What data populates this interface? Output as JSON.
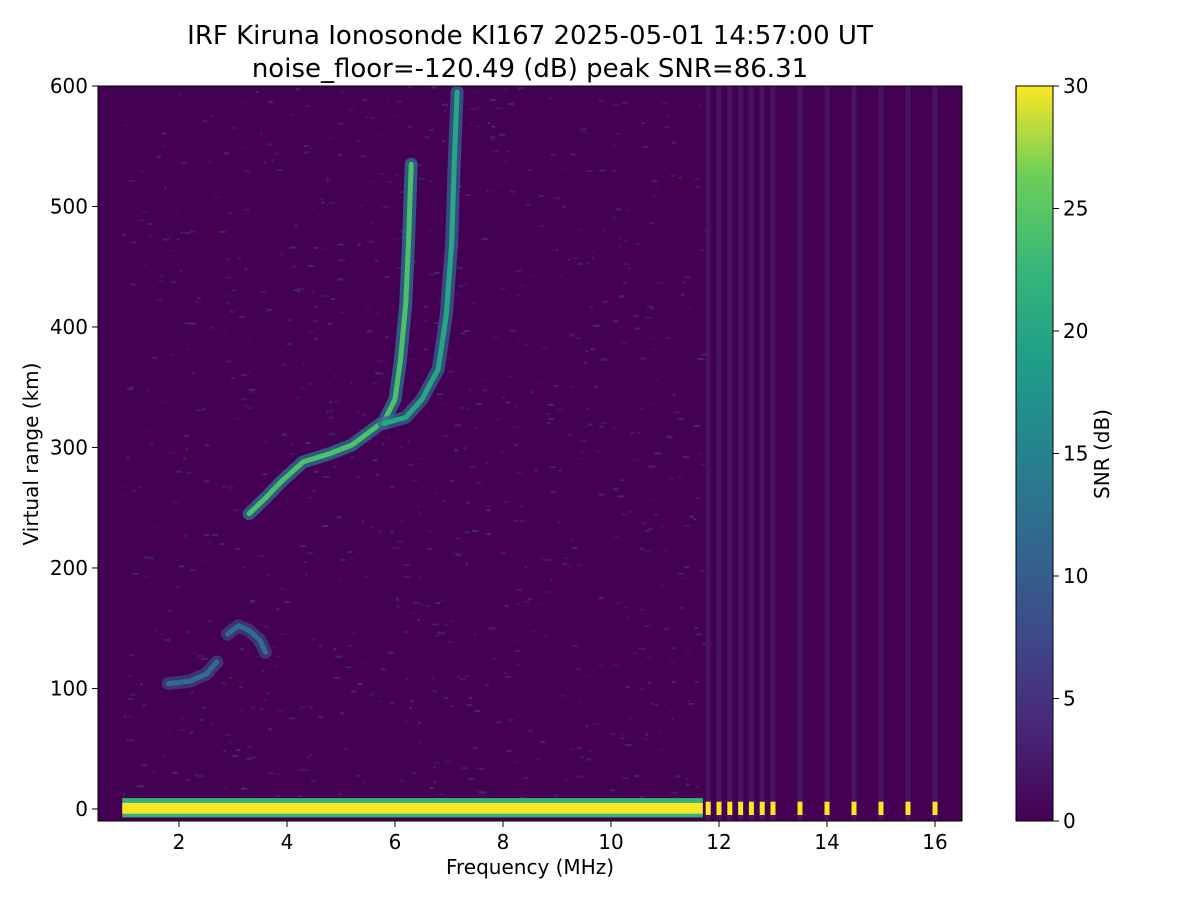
{
  "chart_data": {
    "type": "heatmap",
    "title": "IRF Kiruna Ionosonde KI167 2025-05-01 14:57:00  UT",
    "subtitle": "noise_floor=-120.49 (dB) peak SNR=86.31",
    "xlabel": "Frequency (MHz)",
    "ylabel": "Virtual range (km)",
    "xlim": [
      0.5,
      16.5
    ],
    "ylim": [
      -10,
      600
    ],
    "xticks": [
      2,
      4,
      6,
      8,
      10,
      12,
      14,
      16
    ],
    "yticks": [
      0,
      100,
      200,
      300,
      400,
      500,
      600
    ],
    "colorbar": {
      "label": "SNR (dB)",
      "range": [
        0,
        30
      ],
      "ticks": [
        0,
        5,
        10,
        15,
        20,
        25,
        30
      ],
      "colormap": "viridis"
    },
    "grid": false,
    "traces": [
      {
        "name": "E-layer trace",
        "points": [
          [
            1.8,
            104
          ],
          [
            2.2,
            106
          ],
          [
            2.5,
            112
          ],
          [
            2.7,
            122
          ]
        ],
        "snr": 12
      },
      {
        "name": "Es / E2 echoes",
        "points": [
          [
            2.9,
            145
          ],
          [
            3.1,
            152
          ],
          [
            3.3,
            148
          ],
          [
            3.5,
            140
          ],
          [
            3.6,
            130
          ]
        ],
        "snr": 12
      },
      {
        "name": "F-layer O-mode",
        "points": [
          [
            3.3,
            245
          ],
          [
            3.6,
            258
          ],
          [
            3.9,
            272
          ],
          [
            4.3,
            288
          ],
          [
            4.8,
            295
          ],
          [
            5.2,
            302
          ],
          [
            5.5,
            312
          ],
          [
            5.8,
            322
          ],
          [
            6.0,
            340
          ],
          [
            6.1,
            372
          ],
          [
            6.2,
            420
          ],
          [
            6.25,
            470
          ],
          [
            6.3,
            535
          ]
        ],
        "snr": 24
      },
      {
        "name": "F-layer X-mode",
        "points": [
          [
            5.8,
            320
          ],
          [
            6.2,
            325
          ],
          [
            6.5,
            340
          ],
          [
            6.8,
            365
          ],
          [
            6.95,
            410
          ],
          [
            7.05,
            470
          ],
          [
            7.1,
            540
          ],
          [
            7.15,
            595
          ]
        ],
        "snr": 20
      },
      {
        "name": "ground echo band",
        "points": [
          [
            0.95,
            0
          ],
          [
            11.7,
            0
          ]
        ],
        "snr": 30
      }
    ],
    "discrete_channels_mhz": [
      11.8,
      12.0,
      12.2,
      12.4,
      12.6,
      12.8,
      13.0,
      13.5,
      14.0,
      14.5,
      15.0,
      15.5,
      16.0
    ]
  }
}
